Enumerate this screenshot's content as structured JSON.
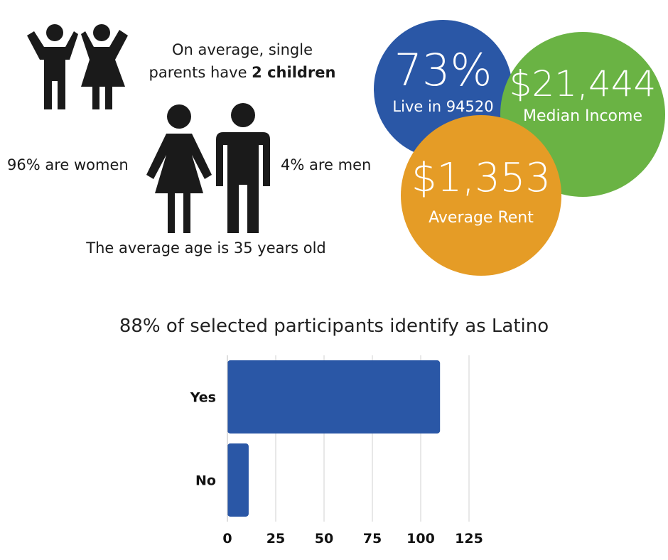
{
  "children_text": {
    "line1": "On average, single",
    "line2_prefix": "parents have ",
    "line2_bold": "2 children"
  },
  "women_text": "96% are women",
  "men_text": "4% are men",
  "age_text": "The average age is 35 years old",
  "bubbles": {
    "live": {
      "value": "73%",
      "label": "Live in 94520",
      "color": "#2a57a6"
    },
    "income": {
      "value": "$21,444",
      "label": "Median Income",
      "color": "#6ab344"
    },
    "rent": {
      "value": "$1,353",
      "label": "Average Rent",
      "color": "#e59c26"
    }
  },
  "icons": {
    "children": "children-icon",
    "woman": "woman-icon",
    "man": "man-icon"
  },
  "chart_data": {
    "type": "bar",
    "orientation": "horizontal",
    "title": "88% of selected participants identify as Latino",
    "categories": [
      "Yes",
      "No"
    ],
    "values": [
      110,
      11
    ],
    "xlim": [
      0,
      125
    ],
    "xticks": [
      0,
      25,
      50,
      75,
      100,
      125
    ],
    "grid": true,
    "bar_color": "#2a57a6"
  }
}
